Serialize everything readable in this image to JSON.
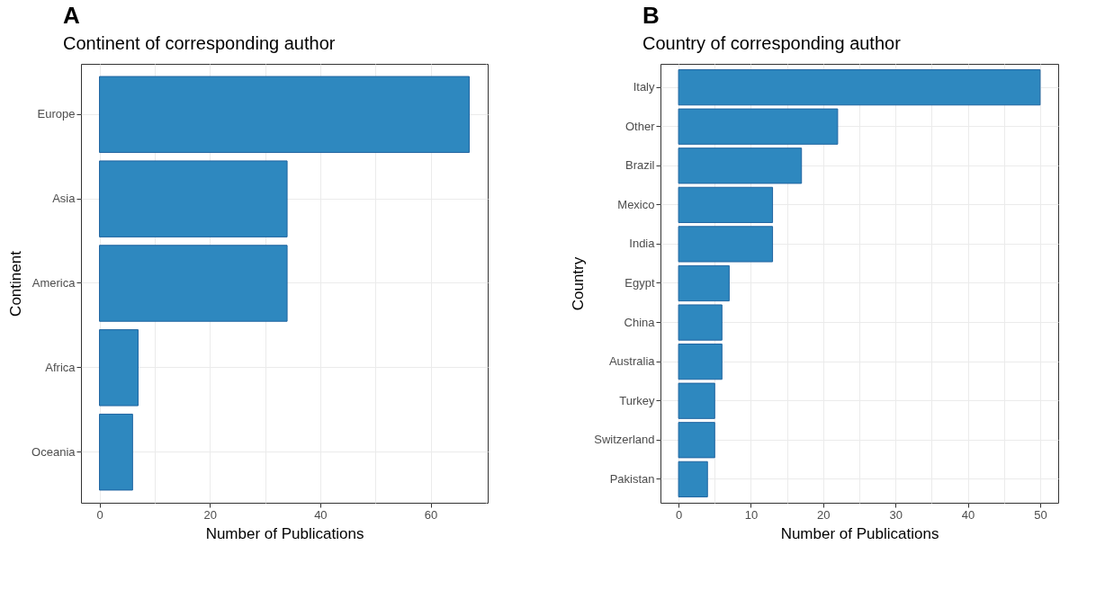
{
  "chart_data": [
    {
      "type": "bar",
      "orientation": "horizontal",
      "title": "Continent of corresponding author",
      "xlabel": "Number of Publications",
      "ylabel": "Continent",
      "annotations": [
        "A"
      ],
      "categories": [
        "Europe",
        "Asia",
        "America",
        "Africa",
        "Oceania"
      ],
      "values": [
        67,
        34,
        34,
        7,
        6
      ],
      "color": "#2e88bf",
      "xlim": [
        -3.35,
        70.35
      ],
      "xticks": [
        0,
        {
          "value": 10,
          "label": null
        },
        20,
        {
          "value": 30,
          "label": null
        },
        40,
        {
          "value": 50,
          "label": null
        },
        60,
        {
          "value": 70,
          "label": null
        }
      ],
      "grid": true
    },
    {
      "type": "bar",
      "orientation": "horizontal",
      "title": "Country of corresponding author",
      "xlabel": "Number of Publications",
      "ylabel": "Country",
      "annotations": [
        "B"
      ],
      "categories": [
        "Italy",
        "Other",
        "Brazil",
        "Mexico",
        "India",
        "Egypt",
        "China",
        "Australia",
        "Turkey",
        "Switzerland",
        "Pakistan"
      ],
      "values": [
        50,
        22,
        17,
        13,
        13,
        7,
        6,
        6,
        5,
        5,
        4
      ],
      "color": "#2e88bf",
      "xlim": [
        -2.5,
        52.5
      ],
      "xticks": [
        0,
        {
          "value": 5,
          "label": null
        },
        10,
        {
          "value": 15,
          "label": null
        },
        20,
        {
          "value": 25,
          "label": null
        },
        30,
        {
          "value": 35,
          "label": null
        },
        40,
        {
          "value": 45,
          "label": null
        },
        50
      ],
      "grid": true
    }
  ]
}
